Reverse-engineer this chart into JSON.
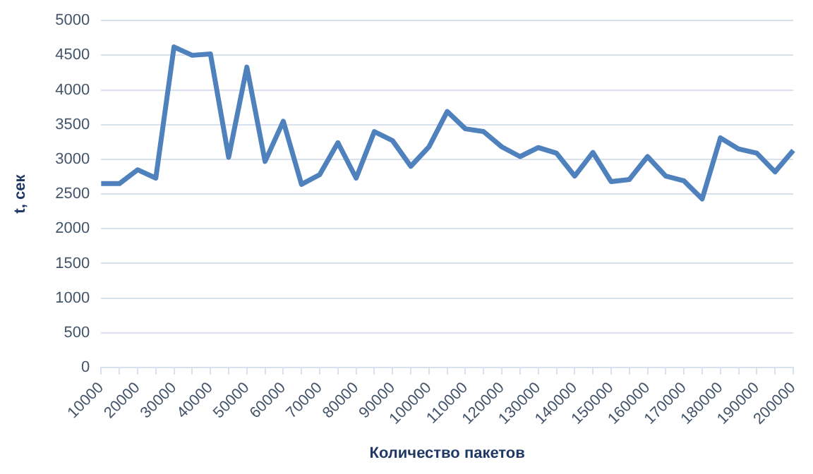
{
  "chart_data": {
    "type": "line",
    "xlabel": "Количество пакетов",
    "ylabel": "t, сек",
    "categories": [
      "10000",
      null,
      "20000",
      null,
      "30000",
      null,
      "40000",
      null,
      "50000",
      null,
      "60000",
      null,
      "70000",
      null,
      "80000",
      null,
      "90000",
      null,
      "100000",
      null,
      "110000",
      null,
      "120000",
      null,
      "130000",
      null,
      "140000",
      null,
      "150000",
      null,
      "160000",
      null,
      "170000",
      null,
      "180000",
      null,
      "190000",
      null,
      "200000"
    ],
    "series": [
      {
        "color": "#4f81bd",
        "values": [
          2650,
          2650,
          2850,
          2730,
          4620,
          4500,
          4520,
          3030,
          4330,
          2970,
          3550,
          2640,
          2780,
          3240,
          2730,
          3400,
          3270,
          2900,
          3180,
          3690,
          3440,
          3400,
          3180,
          3040,
          3170,
          3090,
          2760,
          3100,
          2680,
          2710,
          3040,
          2760,
          2690,
          2430,
          3310,
          3150,
          3090,
          2820,
          3130
        ]
      }
    ],
    "ylim": [
      0,
      5000
    ],
    "yticks": [
      0,
      500,
      1000,
      1500,
      2000,
      2500,
      3000,
      3500,
      4000,
      4500,
      5000
    ],
    "grid": "y",
    "legend": false,
    "marker": "none",
    "line_style": "solid"
  }
}
